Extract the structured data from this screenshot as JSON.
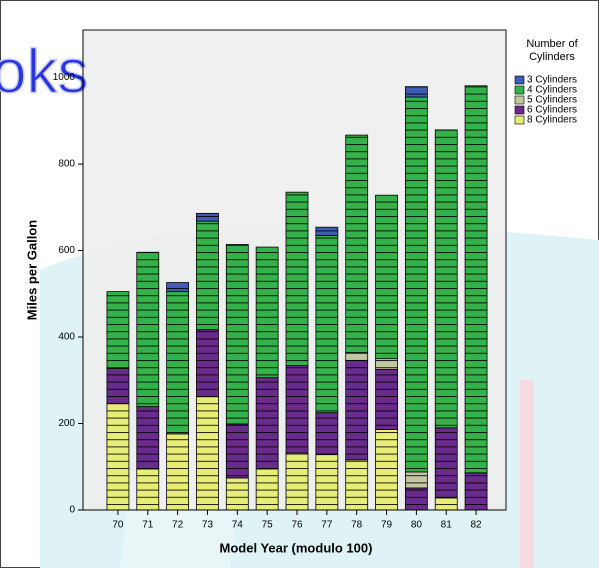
{
  "chart_data": {
    "type": "stacked_bar",
    "watermark": "oks",
    "x_label": "Model Year (modulo 100)",
    "y_label": "Miles per Gallon",
    "legend_title": "Number of Cylinders",
    "legend_position": "right",
    "categories": [
      "70",
      "71",
      "72",
      "73",
      "74",
      "75",
      "76",
      "77",
      "78",
      "79",
      "80",
      "81",
      "82"
    ],
    "series": [
      {
        "name": "8 Cylinders",
        "color": "#e6ee78",
        "values": [
          246,
          95,
          176,
          262,
          74,
          95,
          132,
          128,
          116,
          186,
          null,
          28,
          null
        ]
      },
      {
        "name": "6 Cylinders",
        "color": "#6a2c8c",
        "values": [
          81,
          144,
          null,
          155,
          125,
          211,
          202,
          97,
          230,
          139,
          51,
          162,
          86
        ]
      },
      {
        "name": "5 Cylinders",
        "color": "#c2c7a0",
        "values": [
          null,
          null,
          null,
          null,
          null,
          null,
          null,
          null,
          18,
          25,
          37,
          null,
          null
        ]
      },
      {
        "name": "4 Cylinders",
        "color": "#34b24a",
        "values": [
          178,
          357,
          329,
          251,
          415,
          302,
          401,
          410,
          503,
          378,
          867,
          689,
          895
        ]
      },
      {
        "name": "3 Cylinders",
        "color": "#3d5cb5",
        "values": [
          null,
          null,
          21,
          18,
          null,
          null,
          null,
          19,
          null,
          null,
          24,
          null,
          null
        ]
      }
    ],
    "ylim": [
      0,
      1110
    ],
    "yticks": [
      0,
      200,
      400,
      600,
      800,
      1000
    ]
  }
}
